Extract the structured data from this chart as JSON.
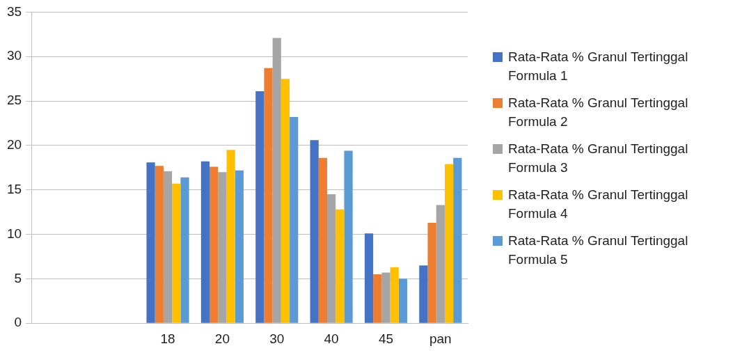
{
  "chart_data": {
    "type": "bar",
    "categories": [
      null,
      null,
      "18",
      "20",
      "30",
      "40",
      "45",
      "pan"
    ],
    "series": [
      {
        "name": "Rata-Rata % Granul Tertinggal Formula 1",
        "color": "#4472c4",
        "values": [
          null,
          null,
          18.1,
          18.2,
          26.1,
          20.6,
          10.1,
          6.5
        ]
      },
      {
        "name": "Rata-Rata % Granul Tertinggal Formula 2",
        "color": "#ed7d31",
        "values": [
          null,
          null,
          17.7,
          17.6,
          28.7,
          18.6,
          5.5,
          11.3
        ]
      },
      {
        "name": "Rata-Rata % Granul Tertinggal Formula 3",
        "color": "#a5a5a5",
        "values": [
          null,
          null,
          17.1,
          17.0,
          32.1,
          14.5,
          5.7,
          13.3
        ]
      },
      {
        "name": "Rata-Rata % Granul Tertinggal Formula 4",
        "color": "#ffc000",
        "values": [
          null,
          null,
          15.7,
          19.5,
          27.5,
          12.8,
          6.3,
          17.9
        ]
      },
      {
        "name": "Rata-Rata % Granul Tertinggal Formula 5",
        "color": "#5b9bd5",
        "values": [
          null,
          null,
          16.4,
          17.2,
          23.2,
          19.4,
          5.0,
          18.6
        ]
      }
    ],
    "ylim": [
      0,
      35
    ],
    "yticks": [
      0,
      5,
      10,
      15,
      20,
      25,
      30,
      35
    ],
    "grid": "y",
    "legend": "right"
  }
}
